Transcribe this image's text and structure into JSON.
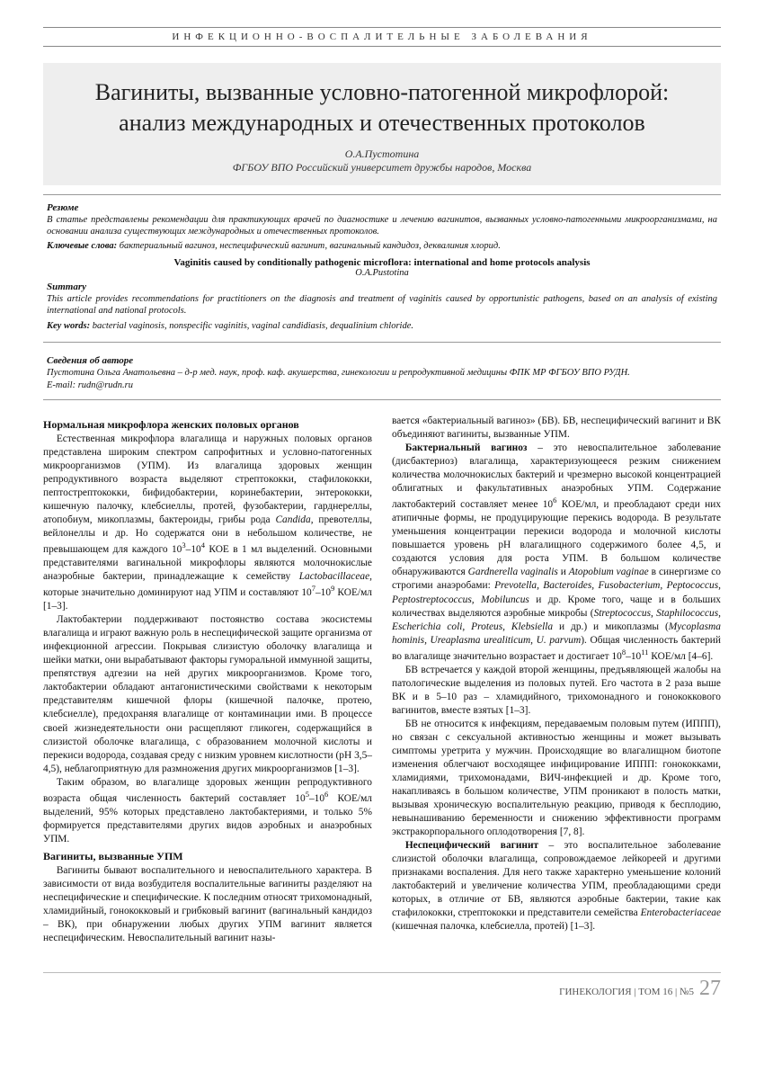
{
  "top_category": "ИНФЕКЦИОННО-ВОСПАЛИТЕЛЬНЫЕ ЗАБОЛЕВАНИЯ",
  "title": "Вагиниты, вызванные условно-патогенной микрофлорой: анализ международных и отечественных протоколов",
  "authors": "О.А.Пустотина",
  "affil": "ФГБОУ ВПО Российский университет дружбы народов, Москва",
  "resume_heading": "Резюме",
  "resume_text": "В статье представлены рекомендации для практикующих врачей по диагностике и лечению вагинитов, вызванных условно-патогенными микроорганизмами, на основании анализа существующих международных и отечественных протоколов.",
  "keywords_label": "Ключевые слова:",
  "keywords_text": "бактериальный вагиноз, неспецифический вагинит, вагинальный кандидоз, деквалиния хлорид.",
  "en_title": "Vaginitis caused by conditionally pathogenic microflora: international and home protocols analysis",
  "en_author": "O.A.Pustotina",
  "summary_heading": "Summary",
  "summary_text": "This article provides recommendations for practitioners on the diagnosis and treatment of vaginitis caused by opportunistic pathogens, based on an analysis of existing international and national protocols.",
  "en_keywords_label": "Key words:",
  "en_keywords_text": "bacterial vaginosis, nonspecific vaginitis, vaginal candidiasis, dequalinium chloride.",
  "author_info_heading": "Сведения об авторе",
  "author_info_text": "Пустотина Ольга Анатольевна – д-р мед. наук, проф. каф. акушерства, гинекологии и репродуктивной медицины ФПК МР ФГБОУ ВПО РУДН.",
  "author_email": "E-mail: rudn@rudn.ru",
  "section1_heading": "Нормальная микрофлора женских половых органов",
  "section2_heading": "Вагиниты, вызванные УПМ",
  "footer_journal": "ГИНЕКОЛОГИЯ | ТОМ 16 | №5",
  "page_number": "27"
}
